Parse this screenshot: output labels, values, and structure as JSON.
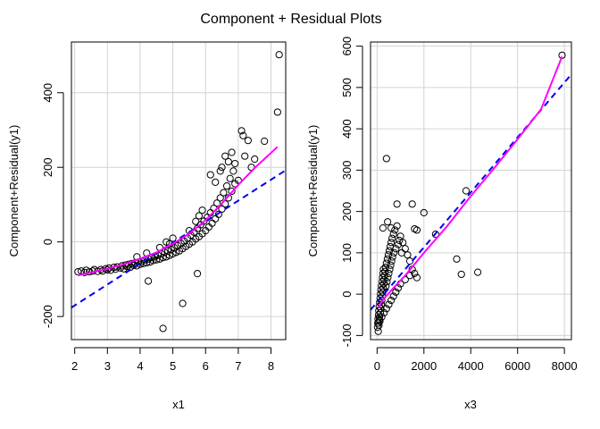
{
  "figure": {
    "title": "Component + Residual Plots"
  },
  "chart_data": [
    {
      "type": "scatter",
      "xlabel": "x1",
      "ylabel": "Component+Residual(y1)",
      "xlim": [
        1.9,
        8.45
      ],
      "ylim": [
        -262,
        536
      ],
      "xticks": [
        2,
        3,
        4,
        5,
        6,
        7,
        8
      ],
      "yticks": [
        -200,
        0,
        200,
        400
      ],
      "grid": true,
      "points": [
        [
          2.1,
          -80
        ],
        [
          2.2,
          -78
        ],
        [
          2.3,
          -82
        ],
        [
          2.35,
          -76
        ],
        [
          2.45,
          -80
        ],
        [
          2.55,
          -78
        ],
        [
          2.6,
          -74
        ],
        [
          2.7,
          -79
        ],
        [
          2.8,
          -74
        ],
        [
          2.85,
          -78
        ],
        [
          2.95,
          -72
        ],
        [
          3.0,
          -75
        ],
        [
          3.05,
          -70
        ],
        [
          3.1,
          -76
        ],
        [
          3.2,
          -68
        ],
        [
          3.25,
          -73
        ],
        [
          3.3,
          -67
        ],
        [
          3.4,
          -70
        ],
        [
          3.45,
          -64
        ],
        [
          3.5,
          -72
        ],
        [
          3.55,
          -62
        ],
        [
          3.6,
          -66
        ],
        [
          3.65,
          -60
        ],
        [
          3.7,
          -68
        ],
        [
          3.75,
          -58
        ],
        [
          3.8,
          -63
        ],
        [
          3.85,
          -56
        ],
        [
          3.9,
          -64
        ],
        [
          3.95,
          -54
        ],
        [
          4.0,
          -60
        ],
        [
          4.05,
          -52
        ],
        [
          4.1,
          -58
        ],
        [
          4.15,
          -48
        ],
        [
          4.2,
          -56
        ],
        [
          4.25,
          -46
        ],
        [
          4.3,
          -54
        ],
        [
          4.35,
          -42
        ],
        [
          4.4,
          -50
        ],
        [
          4.45,
          -40
        ],
        [
          4.5,
          -48
        ],
        [
          4.55,
          -36
        ],
        [
          4.6,
          -46
        ],
        [
          4.65,
          -32
        ],
        [
          4.7,
          -42
        ],
        [
          4.75,
          -28
        ],
        [
          4.8,
          -40
        ],
        [
          4.85,
          -24
        ],
        [
          4.9,
          -36
        ],
        [
          4.95,
          -20
        ],
        [
          5.0,
          -32
        ],
        [
          5.05,
          -16
        ],
        [
          5.1,
          -28
        ],
        [
          5.15,
          -10
        ],
        [
          5.2,
          -24
        ],
        [
          5.25,
          -4
        ],
        [
          5.3,
          -18
        ],
        [
          5.35,
          2
        ],
        [
          5.4,
          -12
        ],
        [
          5.45,
          10
        ],
        [
          5.5,
          -6
        ],
        [
          5.55,
          18
        ],
        [
          5.6,
          0
        ],
        [
          5.65,
          26
        ],
        [
          5.7,
          8
        ],
        [
          5.75,
          36
        ],
        [
          5.8,
          14
        ],
        [
          5.85,
          46
        ],
        [
          5.9,
          22
        ],
        [
          5.95,
          56
        ],
        [
          6.0,
          30
        ],
        [
          6.05,
          66
        ],
        [
          6.1,
          40
        ],
        [
          6.15,
          78
        ],
        [
          6.2,
          50
        ],
        [
          6.25,
          90
        ],
        [
          6.3,
          62
        ],
        [
          6.35,
          104
        ],
        [
          6.4,
          74
        ],
        [
          6.45,
          118
        ],
        [
          6.5,
          88
        ],
        [
          6.55,
          132
        ],
        [
          6.6,
          102
        ],
        [
          6.65,
          150
        ],
        [
          6.7,
          118
        ],
        [
          6.75,
          170
        ],
        [
          6.8,
          136
        ],
        [
          6.85,
          190
        ],
        [
          6.9,
          156
        ],
        [
          6.5,
          200
        ],
        [
          6.6,
          230
        ],
        [
          6.7,
          215
        ],
        [
          6.8,
          240
        ],
        [
          6.9,
          210
        ],
        [
          7.0,
          165
        ],
        [
          7.1,
          298
        ],
        [
          7.15,
          285
        ],
        [
          7.2,
          230
        ],
        [
          7.3,
          272
        ],
        [
          7.4,
          200
        ],
        [
          7.5,
          222
        ],
        [
          7.8,
          270
        ],
        [
          8.2,
          348
        ],
        [
          8.25,
          502
        ],
        [
          6.15,
          180
        ],
        [
          6.3,
          160
        ],
        [
          6.45,
          190
        ],
        [
          5.8,
          70
        ],
        [
          5.9,
          85
        ],
        [
          5.7,
          55
        ],
        [
          5.5,
          30
        ],
        [
          5.0,
          10
        ],
        [
          4.8,
          0
        ],
        [
          4.9,
          -5
        ],
        [
          4.6,
          -15
        ],
        [
          4.2,
          -30
        ],
        [
          3.9,
          -40
        ],
        [
          4.25,
          -105
        ],
        [
          5.3,
          -165
        ],
        [
          5.75,
          -85
        ],
        [
          4.7,
          -232
        ]
      ],
      "lines": [
        {
          "style": "dashed",
          "color": "#0000ee",
          "x": [
            1.9,
            8.45
          ],
          "y": [
            -176,
            192
          ]
        },
        {
          "style": "solid",
          "color": "#ff00ff",
          "x": [
            2.1,
            2.5,
            3.0,
            3.5,
            4.0,
            4.5,
            5.0,
            5.5,
            6.0,
            6.5,
            7.0,
            7.5,
            8.2
          ],
          "y": [
            -90,
            -82,
            -72,
            -60,
            -45,
            -28,
            -5,
            22,
            58,
            103,
            153,
            198,
            255
          ]
        }
      ]
    },
    {
      "type": "scatter",
      "xlabel": "x3",
      "ylabel": "Component+Residual(y1)",
      "xlim": [
        -280,
        8300
      ],
      "ylim": [
        -110,
        610
      ],
      "xticks": [
        0,
        2000,
        4000,
        6000,
        8000
      ],
      "yticks": [
        -100,
        0,
        100,
        200,
        300,
        400,
        500,
        600
      ],
      "grid": true,
      "points": [
        [
          20,
          -80
        ],
        [
          30,
          -70
        ],
        [
          40,
          -60
        ],
        [
          50,
          -90
        ],
        [
          60,
          -50
        ],
        [
          70,
          -40
        ],
        [
          80,
          -75
        ],
        [
          90,
          -30
        ],
        [
          100,
          -55
        ],
        [
          110,
          -20
        ],
        [
          120,
          -65
        ],
        [
          130,
          -10
        ],
        [
          140,
          -45
        ],
        [
          150,
          0
        ],
        [
          160,
          -35
        ],
        [
          170,
          10
        ],
        [
          180,
          -25
        ],
        [
          190,
          20
        ],
        [
          200,
          -15
        ],
        [
          210,
          30
        ],
        [
          220,
          -5
        ],
        [
          230,
          40
        ],
        [
          240,
          5
        ],
        [
          250,
          50
        ],
        [
          260,
          15
        ],
        [
          270,
          60
        ],
        [
          280,
          25
        ],
        [
          300,
          35
        ],
        [
          320,
          45
        ],
        [
          340,
          55
        ],
        [
          360,
          65
        ],
        [
          380,
          20
        ],
        [
          400,
          75
        ],
        [
          420,
          30
        ],
        [
          440,
          85
        ],
        [
          460,
          40
        ],
        [
          480,
          95
        ],
        [
          500,
          50
        ],
        [
          520,
          105
        ],
        [
          540,
          60
        ],
        [
          560,
          115
        ],
        [
          580,
          70
        ],
        [
          600,
          125
        ],
        [
          620,
          80
        ],
        [
          640,
          135
        ],
        [
          660,
          90
        ],
        [
          700,
          145
        ],
        [
          720,
          100
        ],
        [
          760,
          155
        ],
        [
          800,
          110
        ],
        [
          850,
          165
        ],
        [
          900,
          120
        ],
        [
          950,
          130
        ],
        [
          1000,
          140
        ],
        [
          1050,
          100
        ],
        [
          1100,
          125
        ],
        [
          1200,
          110
        ],
        [
          1300,
          95
        ],
        [
          1400,
          80
        ],
        [
          1500,
          60
        ],
        [
          1600,
          50
        ],
        [
          1700,
          40
        ],
        [
          1400,
          45
        ],
        [
          1200,
          35
        ],
        [
          1000,
          25
        ],
        [
          900,
          15
        ],
        [
          800,
          5
        ],
        [
          700,
          -5
        ],
        [
          600,
          -15
        ],
        [
          500,
          -25
        ],
        [
          400,
          -35
        ],
        [
          300,
          -45
        ],
        [
          200,
          -55
        ],
        [
          100,
          -62
        ],
        [
          60,
          -70
        ],
        [
          250,
          160
        ],
        [
          450,
          175
        ],
        [
          600,
          160
        ],
        [
          850,
          218
        ],
        [
          1500,
          218
        ],
        [
          1600,
          158
        ],
        [
          1700,
          155
        ],
        [
          2000,
          197
        ],
        [
          2500,
          145
        ],
        [
          400,
          328
        ],
        [
          3400,
          85
        ],
        [
          3600,
          48
        ],
        [
          4300,
          53
        ],
        [
          3800,
          250
        ],
        [
          7900,
          578
        ]
      ],
      "lines": [
        {
          "style": "dashed",
          "color": "#0000ee",
          "x": [
            -280,
            8300
          ],
          "y": [
            -38,
            532
          ]
        },
        {
          "style": "solid",
          "color": "#ff00ff",
          "x": [
            50,
            300,
            700,
            1200,
            2000,
            3000,
            4000,
            5000,
            6000,
            7000,
            7900
          ],
          "y": [
            -32,
            -10,
            15,
            45,
            100,
            165,
            237,
            305,
            375,
            447,
            575
          ]
        }
      ]
    }
  ]
}
